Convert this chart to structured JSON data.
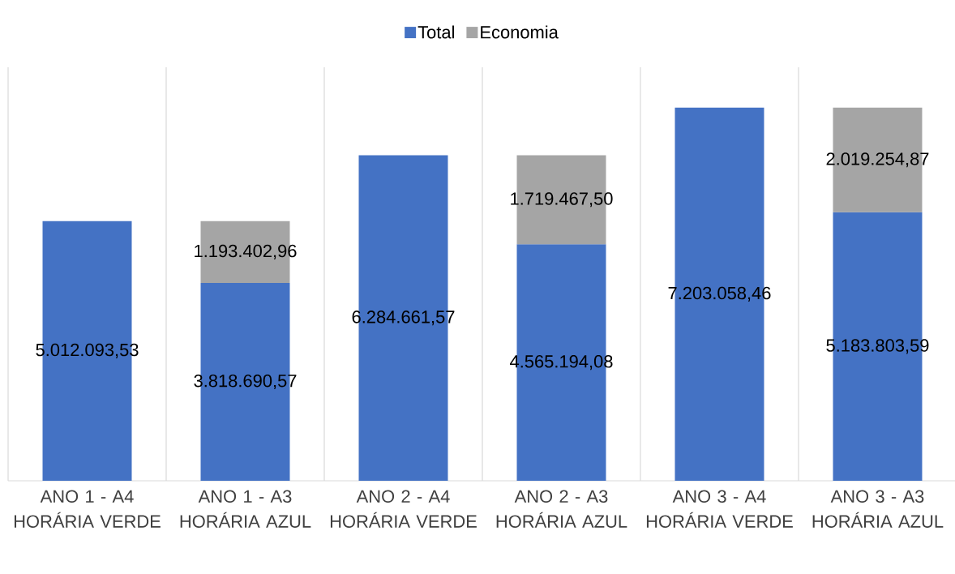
{
  "chart_data": {
    "type": "bar",
    "stacked": true,
    "categories": [
      "ANO 1 - A4 HORÁRIA VERDE",
      "ANO 1 - A3 HORÁRIA AZUL",
      "ANO 2 - A4 HORÁRIA VERDE",
      "ANO 2 - A3 HORÁRIA AZUL",
      "ANO 3 - A4 HORÁRIA VERDE",
      "ANO 3 - A3 HORÁRIA AZUL"
    ],
    "series": [
      {
        "name": "Total",
        "color": "#4472c4",
        "values": [
          5012093.53,
          3818690.57,
          6284661.57,
          4565194.08,
          7203058.46,
          5183803.59
        ],
        "value_labels": [
          "5.012.093,53",
          "3.818.690,57",
          "6.284.661,57",
          "4.565.194,08",
          "7.203.058,46",
          "5.183.803,59"
        ]
      },
      {
        "name": "Economia",
        "color": "#a5a5a5",
        "values": [
          null,
          1193402.96,
          null,
          1719467.5,
          null,
          2019254.87
        ],
        "value_labels": [
          null,
          "1.193.402,96",
          null,
          "1.719.467,50",
          null,
          "2.019.254,87"
        ]
      }
    ],
    "grid": "x",
    "legend": "top"
  }
}
